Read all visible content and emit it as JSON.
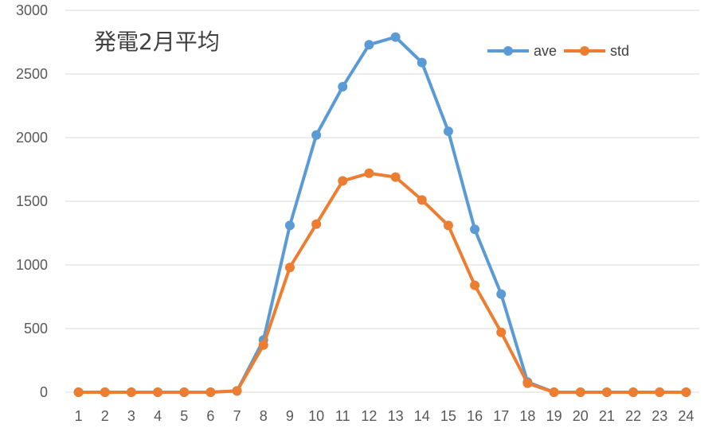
{
  "chart_data": {
    "type": "line",
    "title": "発電2月平均",
    "xlabel": "",
    "ylabel": "",
    "categories": [
      "1",
      "2",
      "3",
      "4",
      "5",
      "6",
      "7",
      "8",
      "9",
      "10",
      "11",
      "12",
      "13",
      "14",
      "15",
      "16",
      "17",
      "18",
      "19",
      "20",
      "21",
      "22",
      "23",
      "24"
    ],
    "ylim": [
      0,
      3000
    ],
    "yticks": [
      0,
      500,
      1000,
      1500,
      2000,
      2500,
      3000
    ],
    "grid": true,
    "legend_position": "top-right",
    "series": [
      {
        "name": "ave",
        "color": "#5b9bd5",
        "values": [
          0,
          0,
          0,
          0,
          0,
          0,
          10,
          410,
          1310,
          2020,
          2400,
          2730,
          2790,
          2590,
          2050,
          1280,
          770,
          80,
          0,
          0,
          0,
          0,
          0,
          0
        ]
      },
      {
        "name": "std",
        "color": "#ed7d31",
        "values": [
          0,
          0,
          0,
          0,
          0,
          0,
          10,
          370,
          980,
          1320,
          1660,
          1720,
          1690,
          1510,
          1310,
          840,
          470,
          70,
          0,
          0,
          0,
          0,
          0,
          0
        ]
      }
    ]
  }
}
